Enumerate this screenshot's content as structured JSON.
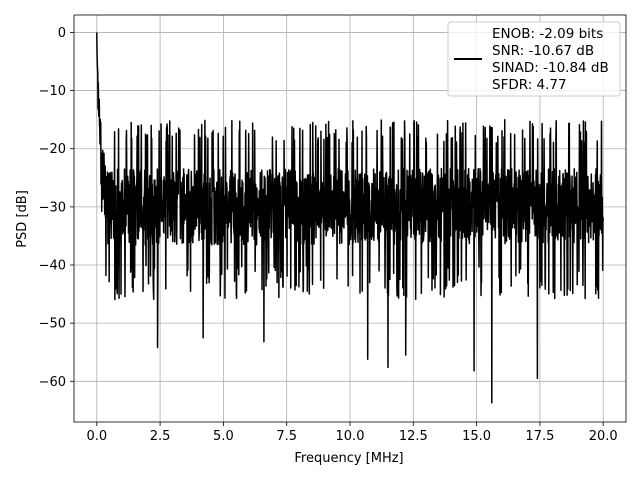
{
  "chart_data": {
    "type": "line",
    "title": "",
    "xlabel": "Frequency [MHz]",
    "ylabel": "PSD [dB]",
    "xlim": [
      -0.9,
      20.9
    ],
    "ylim": [
      -67,
      3
    ],
    "x_ticks": [
      0.0,
      2.5,
      5.0,
      7.5,
      10.0,
      12.5,
      15.0,
      17.5,
      20.0
    ],
    "x_tick_labels": [
      "0.0",
      "2.5",
      "5.0",
      "7.5",
      "10.0",
      "12.5",
      "15.0",
      "17.5",
      "20.0"
    ],
    "y_ticks": [
      0,
      -10,
      -20,
      -30,
      -40,
      -50,
      -60
    ],
    "y_tick_labels": [
      "0",
      "−10",
      "−20",
      "−30",
      "−40",
      "−50",
      "−60"
    ],
    "grid": true,
    "legend_position": "top-right",
    "series": [
      {
        "color": "#000000",
        "x_range": [
          0,
          20
        ],
        "peak": {
          "x": 0.0,
          "y": 0
        },
        "typical_y_range": [
          -40,
          -18
        ],
        "minimum": {
          "x": 15.6,
          "y": -63.7
        },
        "notable_dips": [
          {
            "x": 2.4,
            "y": -54.2
          },
          {
            "x": 4.2,
            "y": -52.5
          },
          {
            "x": 6.6,
            "y": -53.2
          },
          {
            "x": 10.7,
            "y": -56.2
          },
          {
            "x": 11.5,
            "y": -57.6
          },
          {
            "x": 12.2,
            "y": -55.5
          },
          {
            "x": 14.9,
            "y": -58.2
          },
          {
            "x": 15.6,
            "y": -63.7
          },
          {
            "x": 17.4,
            "y": -59.5
          }
        ]
      }
    ],
    "legend_lines": [
      "ENOB: -2.09 bits",
      "SNR: -10.67 dB",
      "SINAD: -10.84 dB",
      "SFDR: 4.77"
    ]
  }
}
